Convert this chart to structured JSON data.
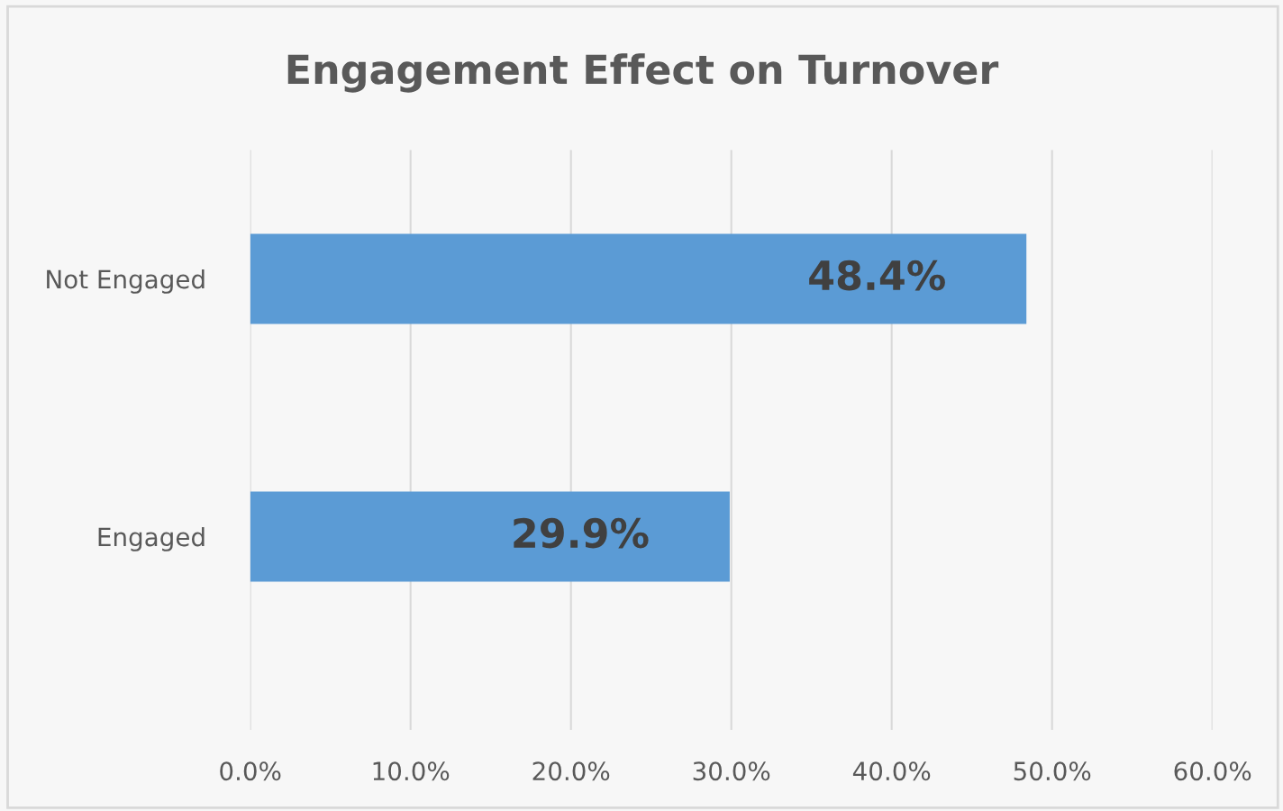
{
  "chart_data": {
    "type": "bar",
    "orientation": "horizontal",
    "title": "Engagement Effect on Turnover",
    "categories": [
      "Not Engaged",
      "Engaged"
    ],
    "values": [
      48.4,
      29.9
    ],
    "color": "#5b9bd5",
    "value_labels": [
      "48.4%",
      "29.9%"
    ],
    "xlim": [
      0,
      60
    ],
    "xticks": [
      {
        "value": 0,
        "label": "0.0%"
      },
      {
        "value": 10,
        "label": "10.0%"
      },
      {
        "value": 20,
        "label": "20.0%"
      },
      {
        "value": 30,
        "label": "30.0%"
      },
      {
        "value": 40,
        "label": "40.0%"
      },
      {
        "value": 50,
        "label": "50.0%"
      },
      {
        "value": 60,
        "label": "60.0%"
      }
    ],
    "grid": "x"
  }
}
